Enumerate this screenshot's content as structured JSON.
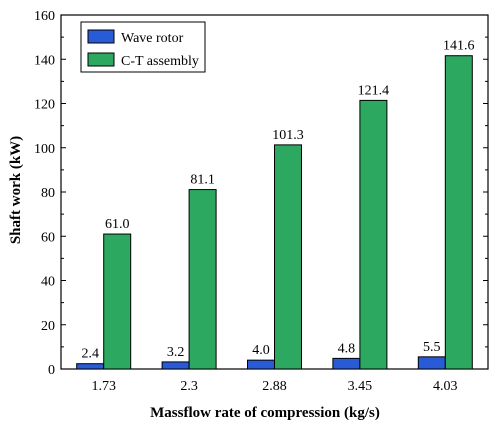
{
  "chart_data": {
    "type": "bar",
    "title": "",
    "xlabel": "Massflow rate of compression (kg/s)",
    "ylabel": "Shaft work (kW)",
    "categories": [
      "1.73",
      "2.3",
      "2.88",
      "3.45",
      "4.03"
    ],
    "ylim": [
      0,
      160
    ],
    "yticks": [
      0,
      20,
      40,
      60,
      80,
      100,
      120,
      140,
      160
    ],
    "grid": false,
    "legend_position": "top-left",
    "series": [
      {
        "name": "Wave rotor",
        "color": "#2a5bd7",
        "values": [
          2.4,
          3.2,
          4.0,
          4.8,
          5.5
        ],
        "labels": [
          "2.4",
          "3.2",
          "4.0",
          "4.8",
          "5.5"
        ]
      },
      {
        "name": "C-T assembly",
        "color": "#2ca860",
        "values": [
          61.0,
          81.1,
          101.3,
          121.4,
          141.6
        ],
        "labels": [
          "61.0",
          "81.1",
          "101.3",
          "121.4",
          "141.6"
        ]
      }
    ]
  }
}
